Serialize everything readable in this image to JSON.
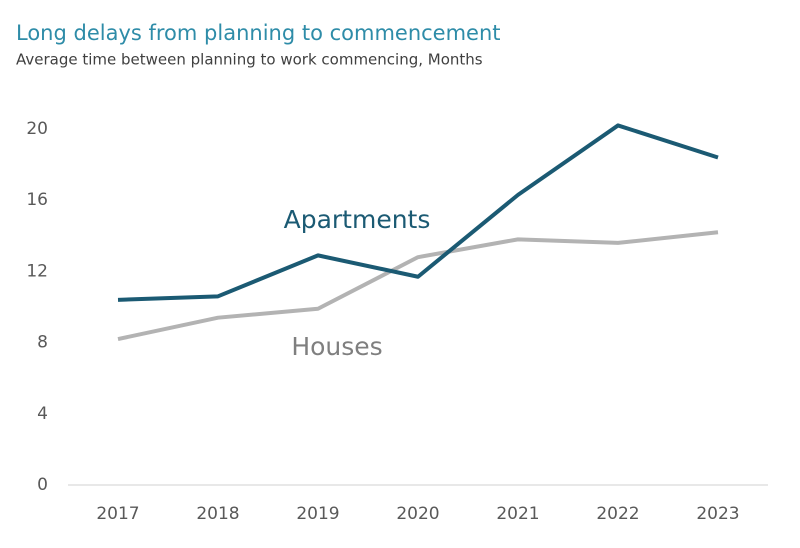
{
  "chart_data": {
    "type": "line",
    "title": "Long delays from planning to commencement",
    "subtitle": "Average time between planning to work commencing, Months",
    "categories": [
      "2017",
      "2018",
      "2019",
      "2020",
      "2021",
      "2022",
      "2023"
    ],
    "series": [
      {
        "name": "Apartments",
        "color": "#1b5a73",
        "values": [
          10.4,
          10.6,
          12.9,
          11.7,
          16.3,
          20.2,
          18.4
        ]
      },
      {
        "name": "Houses",
        "color": "#b3b3b3",
        "values": [
          8.2,
          9.4,
          9.9,
          12.8,
          13.8,
          13.6,
          14.2
        ]
      }
    ],
    "ylim": [
      0,
      20
    ],
    "yticks": [
      0,
      4,
      8,
      12,
      16,
      20
    ],
    "grid": false
  }
}
